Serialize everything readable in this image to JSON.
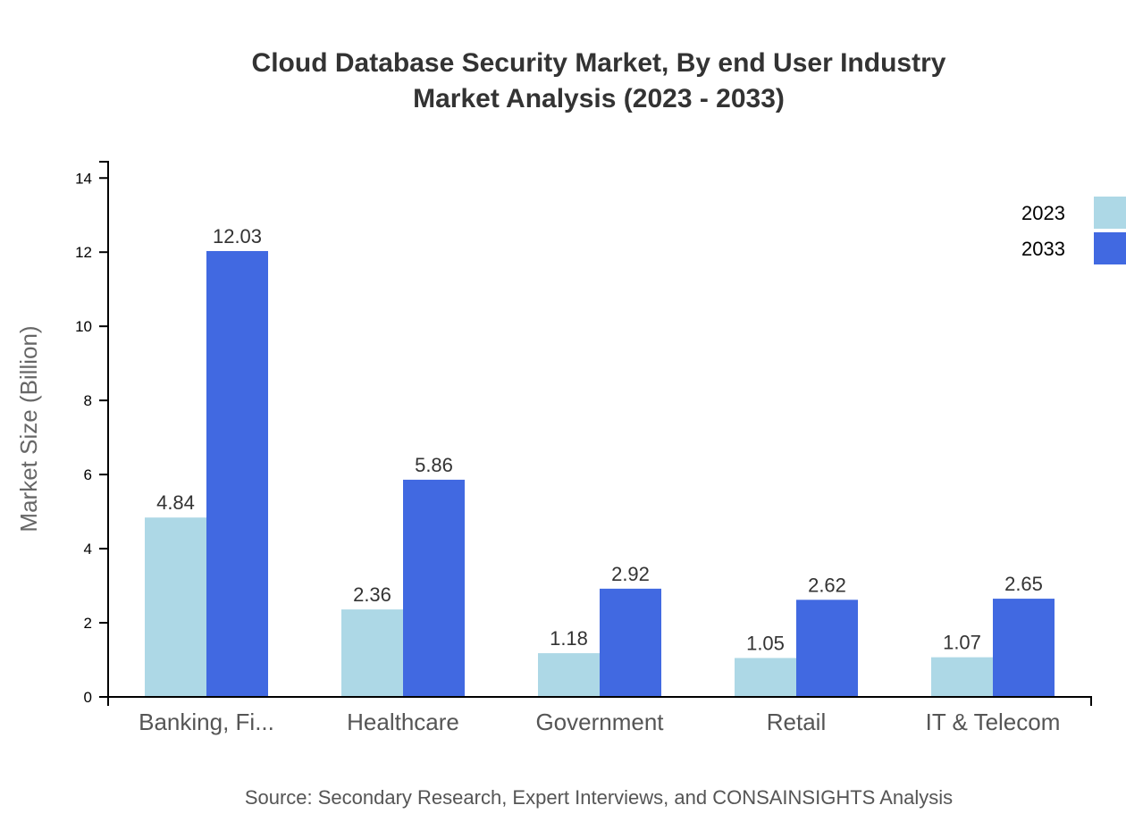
{
  "chart_data": {
    "type": "bar",
    "title": "Cloud Database Security Market, By end User Industry",
    "subtitle": "Market Analysis (2023 - 2033)",
    "xlabel": "",
    "ylabel": "Market Size (Billion)",
    "categories": [
      "Banking, Fi...",
      "Healthcare",
      "Government",
      "Retail",
      "IT & Telecom"
    ],
    "series": [
      {
        "name": "2023",
        "color": "#add8e6",
        "values": [
          4.84,
          2.36,
          1.18,
          1.05,
          1.07
        ]
      },
      {
        "name": "2033",
        "color": "#4169e1",
        "values": [
          12.03,
          5.86,
          2.92,
          2.62,
          2.65
        ]
      }
    ],
    "ylim": [
      0,
      14.44
    ],
    "yticks": [
      0,
      2,
      4,
      6,
      8,
      10,
      12,
      14
    ],
    "grid": false,
    "legend_position": "top-right",
    "source": "Source: Secondary Research, Expert Interviews, and CONSAINSIGHTS Analysis"
  }
}
